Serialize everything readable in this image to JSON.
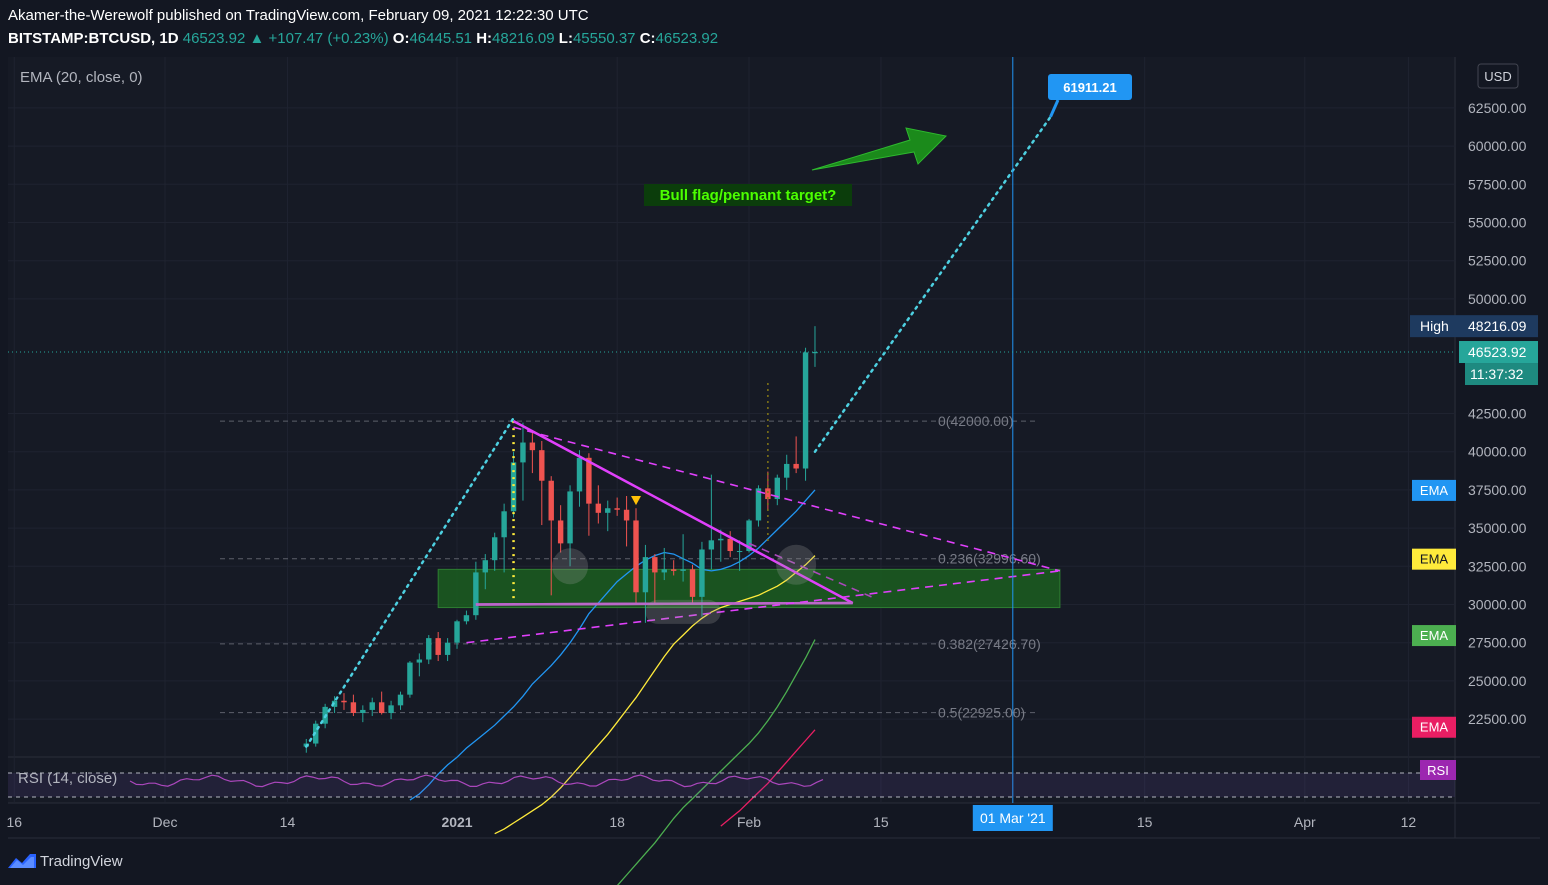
{
  "header": {
    "line1": "Akamer-the-Werewolf published on TradingView.com, February 09, 2021 12:22:30 UTC",
    "symbol": "BITSTAMP:BTCUSD, 1D",
    "last": "46523.92",
    "change": "+107.47 (+0.23%)",
    "o_label": "O:",
    "o": "46445.51",
    "h_label": "H:",
    "h": "48216.09",
    "l_label": "L:",
    "l": "45550.37",
    "c_label": "C:",
    "c": "46523.92"
  },
  "indicator_label": "EMA (20, close, 0)",
  "rsi_label": "RSI (14, close)",
  "currency": "USD",
  "footer_brand": "TradingView",
  "chart_data": {
    "type": "candlestick",
    "y_ticks": [
      "62500.00",
      "60000.00",
      "57500.00",
      "55000.00",
      "52500.00",
      "50000.00",
      "42500.00",
      "40000.00",
      "37500.00",
      "35000.00",
      "32500.00",
      "30000.00",
      "27500.00",
      "25000.00",
      "22500.00"
    ],
    "y_tick_values": [
      62500,
      60000,
      57500,
      55000,
      52500,
      50000,
      42500,
      40000,
      37500,
      35000,
      32500,
      30000,
      27500,
      25000,
      22500
    ],
    "x_ticks": [
      "16",
      "Dec",
      "14",
      "2021",
      "18",
      "Feb",
      "15",
      "15",
      "Apr",
      "12"
    ],
    "x_tick_days": [
      -16,
      0,
      13,
      31,
      48,
      62,
      76,
      104,
      121,
      132
    ],
    "x_tick_bold": [
      false,
      false,
      false,
      true,
      false,
      false,
      false,
      false,
      false,
      false
    ],
    "x_highlight": {
      "label": "01 Mar '21",
      "day": 90
    },
    "vertical_line_day": 90,
    "price_labels": {
      "high": {
        "label": "High",
        "value": "48216.09",
        "price": 48216.09
      },
      "last": {
        "value": "46523.92",
        "price": 46523.92
      },
      "countdown": "11:37:32"
    },
    "ema_tags": [
      {
        "label": "EMA",
        "color": "#2196f3",
        "price": 37500
      },
      {
        "label": "EMA",
        "color": "#ffeb3b",
        "price": 33000
      },
      {
        "label": "EMA",
        "color": "#4caf50",
        "price": 28000
      },
      {
        "label": "EMA",
        "color": "#e91e63",
        "price": 22000
      }
    ],
    "rsi_tag": {
      "label": "RSI",
      "color": "#9c27b0"
    },
    "target": {
      "label": "61911.21",
      "price": 61911.21
    },
    "annotation": "Bull flag/pennant target?",
    "fib_levels": [
      {
        "label": "0(42000.00)",
        "price": 42000
      },
      {
        "label": "0.236(32996.60)",
        "price": 32996.6
      },
      {
        "label": "0.382(27426.70)",
        "price": 27426.7
      },
      {
        "label": "0.5(22925.00)",
        "price": 22925
      }
    ],
    "zone": {
      "from_price": 29800,
      "to_price": 32300,
      "from_day": 29,
      "to_day": 95
    },
    "candles_ohlc": [
      [
        20700,
        21200,
        20300,
        20900
      ],
      [
        20900,
        22400,
        20700,
        22200
      ],
      [
        22200,
        23500,
        21900,
        23300
      ],
      [
        23300,
        24000,
        22900,
        23700
      ],
      [
        23700,
        24200,
        23100,
        23600
      ],
      [
        23600,
        24100,
        22700,
        22900
      ],
      [
        22900,
        23400,
        22300,
        23100
      ],
      [
        23100,
        23900,
        22700,
        23600
      ],
      [
        23600,
        24300,
        22800,
        22900
      ],
      [
        22900,
        23700,
        22500,
        23400
      ],
      [
        23400,
        24300,
        23100,
        24100
      ],
      [
        24100,
        26300,
        23900,
        26200
      ],
      [
        26200,
        26800,
        25300,
        26400
      ],
      [
        26400,
        28000,
        26100,
        27800
      ],
      [
        27800,
        28200,
        26300,
        26700
      ],
      [
        26700,
        27800,
        26300,
        27500
      ],
      [
        27500,
        29000,
        27100,
        28900
      ],
      [
        28900,
        29600,
        28700,
        29300
      ],
      [
        29300,
        32800,
        29000,
        32100
      ],
      [
        32100,
        33300,
        31000,
        32900
      ],
      [
        32900,
        34700,
        32200,
        34400
      ],
      [
        34400,
        36600,
        32100,
        36100
      ],
      [
        36100,
        40000,
        35700,
        39300
      ],
      [
        39300,
        41900,
        36800,
        40600
      ],
      [
        40600,
        41400,
        38600,
        40100
      ],
      [
        40100,
        40700,
        35200,
        38100
      ],
      [
        38100,
        38400,
        30600,
        35500
      ],
      [
        35500,
        36500,
        33400,
        34000
      ],
      [
        34000,
        37800,
        32500,
        37400
      ],
      [
        37400,
        40100,
        36400,
        39600
      ],
      [
        39600,
        39900,
        34500,
        36600
      ],
      [
        36600,
        37800,
        35300,
        36000
      ],
      [
        36000,
        36800,
        34800,
        36300
      ],
      [
        36300,
        37000,
        35800,
        36200
      ],
      [
        36200,
        37100,
        33800,
        35500
      ],
      [
        35500,
        36300,
        30000,
        30800
      ],
      [
        30800,
        33900,
        28800,
        33100
      ],
      [
        33100,
        33300,
        30100,
        32100
      ],
      [
        32100,
        33700,
        31600,
        32300
      ],
      [
        32300,
        32900,
        31900,
        32200
      ],
      [
        32200,
        34600,
        31500,
        32300
      ],
      [
        32300,
        32600,
        30100,
        30500
      ],
      [
        30500,
        34100,
        29200,
        33600
      ],
      [
        33600,
        38500,
        32300,
        34200
      ],
      [
        34200,
        34900,
        32800,
        34300
      ],
      [
        34300,
        34800,
        33100,
        33500
      ],
      [
        33500,
        34200,
        32200,
        33500
      ],
      [
        33500,
        35600,
        33400,
        35500
      ],
      [
        35500,
        37800,
        35100,
        37600
      ],
      [
        37600,
        38700,
        36200,
        36900
      ],
      [
        36900,
        38500,
        36500,
        38300
      ],
      [
        38300,
        39800,
        37500,
        39200
      ],
      [
        39200,
        41000,
        38600,
        38900
      ],
      [
        38900,
        46800,
        38100,
        46500
      ],
      [
        46445.51,
        48216.09,
        45550.37,
        46523.92
      ]
    ],
    "ema_blue": [
      17200,
      17600,
      18200,
      18900,
      19500,
      20000,
      20600,
      21100,
      21600,
      22100,
      22700,
      23300,
      24000,
      24800,
      25400,
      26000,
      26700,
      27500,
      28400,
      29400,
      30100,
      30800,
      31500,
      32000,
      32500,
      32900,
      33200,
      33400,
      33300,
      33000,
      32700,
      32300,
      32200,
      32300,
      32500,
      32800,
      33200,
      33700,
      34300,
      34900,
      35500,
      36100,
      36800,
      37500
    ],
    "ema_yellow": [
      15000,
      15300,
      15700,
      16100,
      16500,
      16900,
      17400,
      18000,
      18700,
      19400,
      20100,
      20800,
      21500,
      22300,
      23100,
      23900,
      24800,
      25700,
      26600,
      27400,
      28000,
      28600,
      29100,
      29500,
      29800,
      30000,
      30200,
      30400,
      30600,
      30900,
      31200,
      31600,
      32100,
      32600,
      33200
    ],
    "ema_green": [
      11000,
      11600,
      12300,
      13000,
      13700,
      14400,
      15200,
      16000,
      16700,
      17300,
      17900,
      18500,
      19100,
      19700,
      20300,
      20900,
      21600,
      22400,
      23300,
      24300,
      25400,
      26500,
      27700
    ],
    "ema_red": [
      15500,
      16000,
      16500,
      17100,
      17700,
      18300,
      19000,
      19700,
      20400,
      21100,
      21800
    ]
  }
}
